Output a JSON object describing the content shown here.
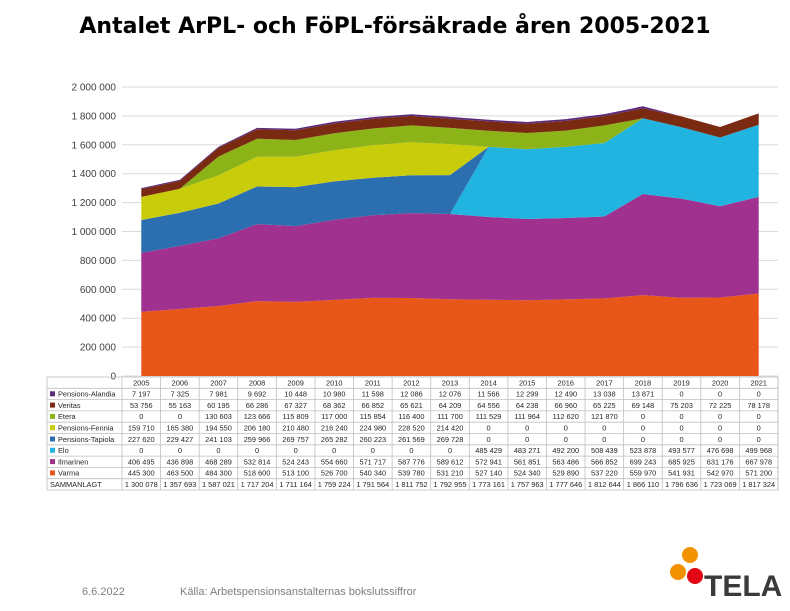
{
  "title": "Antalet ArPL- och FöPL-försäkrade åren 2005-2021",
  "footer": {
    "date": "6.6.2022",
    "source": "Källa: Arbetspensionsanstalternas bokslutssiffror"
  },
  "logo": {
    "text": "TELA",
    "colors": [
      "#f39200",
      "#e30613"
    ]
  },
  "chart_data": {
    "type": "area",
    "stacked": true,
    "title": "Antalet ArPL- och FöPL-försäkrade åren 2005-2021",
    "ylim": [
      0,
      2000000
    ],
    "yticks": [
      "0",
      "200 000",
      "400 000",
      "600 000",
      "800 000",
      "1 000 000",
      "1 200 000",
      "1 400 000",
      "1 600 000",
      "1 800 000",
      "2 000 000"
    ],
    "ytick_values": [
      0,
      200000,
      400000,
      600000,
      800000,
      1000000,
      1200000,
      1400000,
      1600000,
      1800000,
      2000000
    ],
    "grid": true,
    "legend": "table-below",
    "categories": [
      "2005",
      "2006",
      "2007",
      "2008",
      "2009",
      "2010",
      "2011",
      "2012",
      "2013",
      "2014",
      "2015",
      "2016",
      "2017",
      "2018",
      "2019",
      "2020",
      "2021"
    ],
    "series": [
      {
        "name": "Pensions-Alandia",
        "color": "#5b2a7a",
        "values": [
          7197,
          7325,
          7981,
          9692,
          10448,
          10980,
          11598,
          12086,
          12076,
          11566,
          12299,
          12490,
          13038,
          13871,
          0,
          0,
          0
        ],
        "labels": [
          "7 197",
          "7 325",
          "7 981",
          "9 692",
          "10 448",
          "10 980",
          "11 598",
          "12 086",
          "12 076",
          "11 566",
          "12 299",
          "12 490",
          "13 038",
          "13 871",
          "0",
          "0",
          "0"
        ]
      },
      {
        "name": "Veritas",
        "color": "#7b2a12",
        "values": [
          53756,
          55163,
          60195,
          66286,
          67327,
          68362,
          66852,
          65621,
          64209,
          64556,
          64238,
          66960,
          65225,
          69148,
          75203,
          72225,
          78178
        ],
        "labels": [
          "53 756",
          "55 163",
          "60 195",
          "66 286",
          "67 327",
          "68 362",
          "66 852",
          "65 621",
          "64 209",
          "64 556",
          "64 238",
          "66 960",
          "65 225",
          "69 148",
          "75 203",
          "72 225",
          "78 178"
        ]
      },
      {
        "name": "Etera",
        "color": "#8cb418",
        "values": [
          0,
          0,
          130603,
          123666,
          115809,
          117000,
          115854,
          116400,
          111700,
          111529,
          111964,
          112620,
          121870,
          0,
          0,
          0,
          0
        ],
        "labels": [
          "0",
          "0",
          "130 603",
          "123 666",
          "115 809",
          "117 000",
          "115 854",
          "116 400",
          "111 700",
          "111 529",
          "111 964",
          "112 620",
          "121 870",
          "0",
          "0",
          "0",
          "0"
        ]
      },
      {
        "name": "Pensions-Fennia",
        "color": "#c8cc0a",
        "values": [
          159710,
          165380,
          194550,
          206180,
          210480,
          216240,
          224980,
          228520,
          214420,
          0,
          0,
          0,
          0,
          0,
          0,
          0,
          0
        ],
        "labels": [
          "159 710",
          "165 380",
          "194 550",
          "206 180",
          "210 480",
          "216 240",
          "224 980",
          "228 520",
          "214 420",
          "0",
          "0",
          "0",
          "0",
          "0",
          "0",
          "0",
          "0"
        ]
      },
      {
        "name": "Pensions-Tapiola",
        "color": "#2c6fb0",
        "values": [
          227620,
          229427,
          241103,
          259966,
          269757,
          265282,
          260223,
          261569,
          269728,
          0,
          0,
          0,
          0,
          0,
          0,
          0,
          0
        ],
        "labels": [
          "227 620",
          "229 427",
          "241 103",
          "259 966",
          "269 757",
          "265 282",
          "260 223",
          "261 569",
          "269 728",
          "0",
          "0",
          "0",
          "0",
          "0",
          "0",
          "0",
          "0"
        ]
      },
      {
        "name": "Elo",
        "color": "#22b4e0",
        "values": [
          0,
          0,
          0,
          0,
          0,
          0,
          0,
          0,
          0,
          485429,
          483271,
          492200,
          508439,
          523878,
          493577,
          476698,
          499968
        ],
        "labels": [
          "0",
          "0",
          "0",
          "0",
          "0",
          "0",
          "0",
          "0",
          "0",
          "485 429",
          "483 271",
          "492 200",
          "508 439",
          "523 878",
          "493 577",
          "476 698",
          "499 968"
        ]
      },
      {
        "name": "Ilmarinen",
        "color": "#a0318f",
        "values": [
          406495,
          436898,
          468289,
          532814,
          524243,
          554660,
          571717,
          587776,
          589612,
          572941,
          561851,
          563486,
          566852,
          699243,
          685925,
          631176,
          667978
        ],
        "labels": [
          "406 495",
          "436 898",
          "468 289",
          "532 814",
          "524 243",
          "554 660",
          "571 717",
          "587 776",
          "589 612",
          "572 941",
          "561 851",
          "563 486",
          "566 852",
          "699 243",
          "685 925",
          "631 176",
          "667 978"
        ]
      },
      {
        "name": "Varma",
        "color": "#e8561a",
        "values": [
          445300,
          463500,
          484300,
          518600,
          513100,
          526700,
          540340,
          539780,
          531210,
          527140,
          524340,
          529890,
          537220,
          559970,
          541931,
          542970,
          571200
        ],
        "labels": [
          "445 300",
          "463 500",
          "484 300",
          "518 600",
          "513 100",
          "526 700",
          "540 340",
          "539 780",
          "531 210",
          "527 140",
          "524 340",
          "529 890",
          "537 220",
          "559 970",
          "541 931",
          "542 970",
          "571 200"
        ]
      }
    ],
    "stack_order": [
      "Varma",
      "Ilmarinen",
      "Elo",
      "Pensions-Tapiola",
      "Pensions-Fennia",
      "Etera",
      "Veritas",
      "Pensions-Alandia"
    ],
    "total_row": {
      "name": "SAMMANLAGT",
      "labels": [
        "1 300 078",
        "1 357 693",
        "1 587 021",
        "1 717 204",
        "1 711 164",
        "1 759 224",
        "1 791 564",
        "1 811 752",
        "1 792 955",
        "1 773 161",
        "1 757 963",
        "1 777 646",
        "1 812 644",
        "1 866 110",
        "1 796 636",
        "1 723 069",
        "1 817 324"
      ]
    }
  }
}
